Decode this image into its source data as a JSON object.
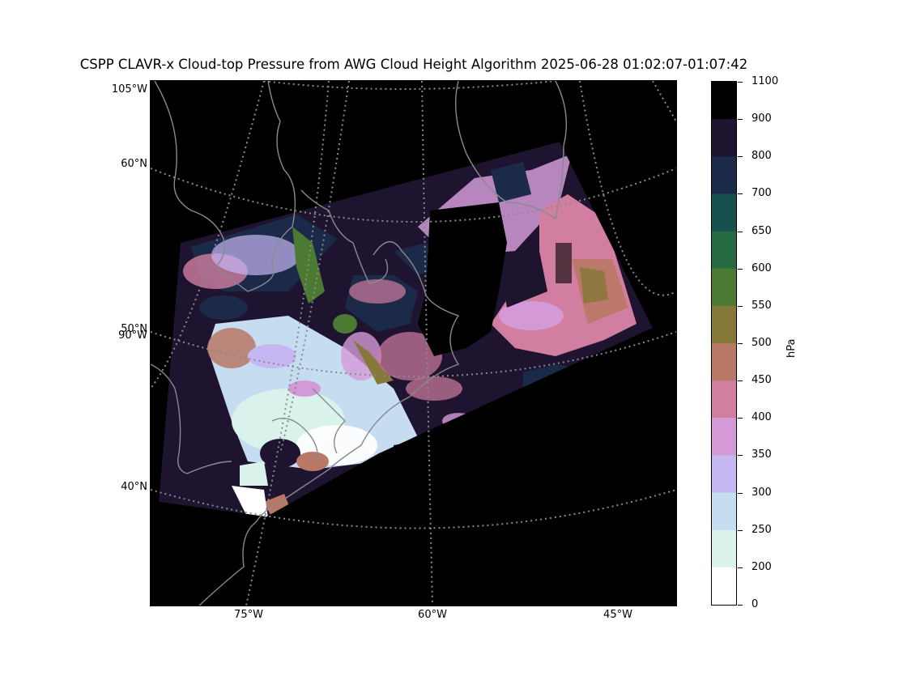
{
  "title": "CSPP CLAVR-x Cloud-top Pressure from AWG Cloud Height Algorithm 2025-06-28 01:02:07-01:07:42",
  "latitude_labels": [
    "105°W",
    "60°N",
    "50°N",
    "90°W",
    "40°N"
  ],
  "longitude_labels": [
    "75°W",
    "60°W",
    "45°W"
  ],
  "colorbar": {
    "unit": "hPa",
    "ticks": [
      "1100",
      "900",
      "800",
      "700",
      "650",
      "600",
      "550",
      "500",
      "450",
      "400",
      "350",
      "300",
      "250",
      "200",
      "0"
    ],
    "colors": [
      "#000000",
      "#1e1430",
      "#1c2a4a",
      "#16504f",
      "#256a43",
      "#4c7a32",
      "#867838",
      "#b97865",
      "#d17ea0",
      "#d49ad8",
      "#c4b7f2",
      "#c6dcf1",
      "#d9f2ec",
      "#ffffff"
    ]
  },
  "palette": {
    "background": "#000000",
    "coast": "#8a8a8a",
    "grid": "#8a8a8a"
  }
}
